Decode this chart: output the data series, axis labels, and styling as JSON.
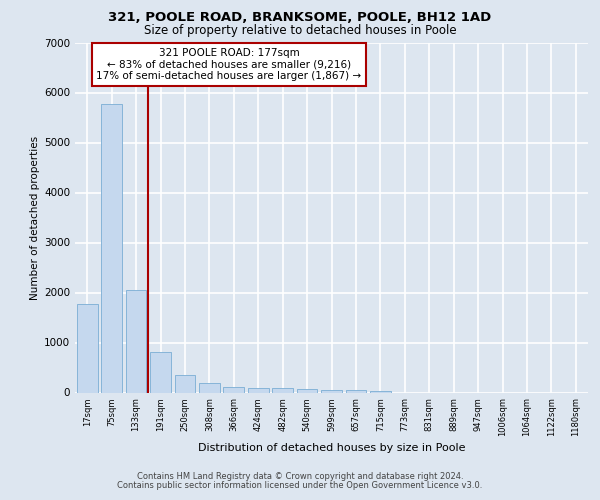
{
  "title1": "321, POOLE ROAD, BRANKSOME, POOLE, BH12 1AD",
  "title2": "Size of property relative to detached houses in Poole",
  "xlabel": "Distribution of detached houses by size in Poole",
  "ylabel": "Number of detached properties",
  "categories": [
    "17sqm",
    "75sqm",
    "133sqm",
    "191sqm",
    "250sqm",
    "308sqm",
    "366sqm",
    "424sqm",
    "482sqm",
    "540sqm",
    "599sqm",
    "657sqm",
    "715sqm",
    "773sqm",
    "831sqm",
    "889sqm",
    "947sqm",
    "1006sqm",
    "1064sqm",
    "1122sqm",
    "1180sqm"
  ],
  "values": [
    1780,
    5780,
    2060,
    820,
    360,
    200,
    120,
    100,
    90,
    70,
    55,
    45,
    35,
    0,
    0,
    0,
    0,
    0,
    0,
    0,
    0
  ],
  "bar_color": "#c5d8ee",
  "bar_edge_color": "#7aadd4",
  "vline_color": "#aa0000",
  "vline_x": 2.5,
  "annotation_line1": "321 POOLE ROAD: 177sqm",
  "annotation_line2": "← 83% of detached houses are smaller (9,216)",
  "annotation_line3": "17% of semi-detached houses are larger (1,867) →",
  "annotation_box_facecolor": "#ffffff",
  "annotation_box_edge": "#aa0000",
  "ylim": [
    0,
    7000
  ],
  "yticks": [
    0,
    1000,
    2000,
    3000,
    4000,
    5000,
    6000,
    7000
  ],
  "background_color": "#dde6f0",
  "grid_color": "#ffffff",
  "footer1": "Contains HM Land Registry data © Crown copyright and database right 2024.",
  "footer2": "Contains public sector information licensed under the Open Government Licence v3.0."
}
